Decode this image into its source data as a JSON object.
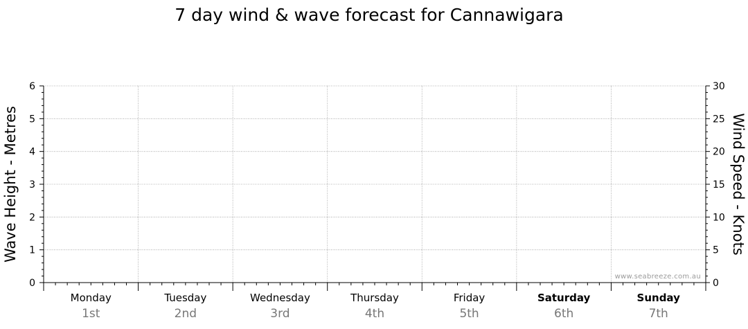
{
  "chart_data": {
    "type": "line",
    "title": "7 day wind & wave forecast for Cannawigara",
    "ylabel_left": "Wave Height - Metres",
    "ylabel_right": "Wind Speed - Knots",
    "ylim_left": [
      0,
      6
    ],
    "ylim_right": [
      0,
      30
    ],
    "yticks_left": [
      0,
      1,
      2,
      3,
      4,
      5,
      6
    ],
    "yticks_right": [
      0,
      5,
      10,
      15,
      20,
      25,
      30
    ],
    "days": [
      {
        "name": "Monday",
        "date": "1st",
        "weekend": false
      },
      {
        "name": "Tuesday",
        "date": "2nd",
        "weekend": false
      },
      {
        "name": "Wednesday",
        "date": "3rd",
        "weekend": false
      },
      {
        "name": "Thursday",
        "date": "4th",
        "weekend": false
      },
      {
        "name": "Friday",
        "date": "5th",
        "weekend": false
      },
      {
        "name": "Saturday",
        "date": "6th",
        "weekend": true
      },
      {
        "name": "Sunday",
        "date": "7th",
        "weekend": true
      }
    ],
    "series": [],
    "grid": true,
    "watermark": "www.seabreeze.com.au"
  }
}
